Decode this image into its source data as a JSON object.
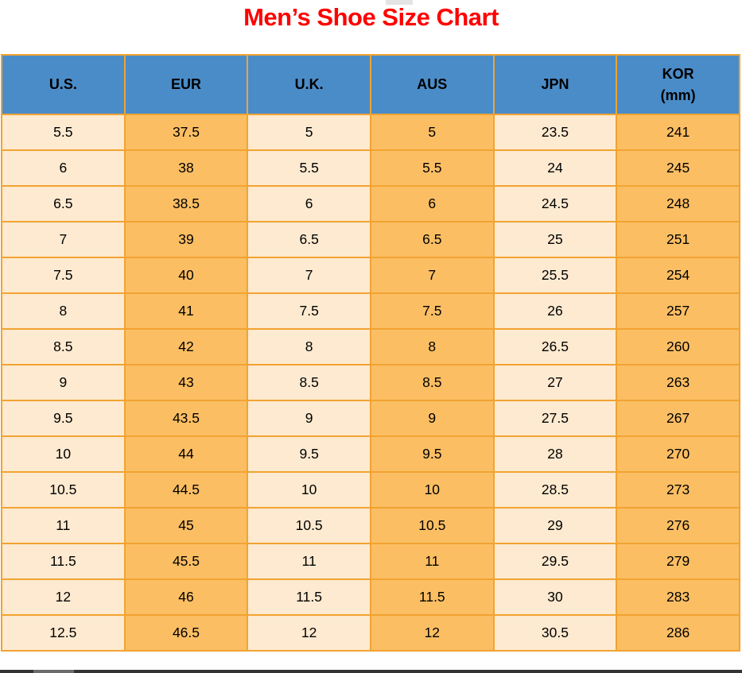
{
  "title": "Men’s Shoe Size Chart",
  "colors": {
    "title_red": "#ff0000",
    "header_blue": "#4a8cc8",
    "border_orange": "#f2a331",
    "cell_cream": "#fdead0",
    "cell_orange": "#fbbe63",
    "scrollbar_track": "#333333",
    "scrollbar_thumb": "#6b6b6b",
    "artifact_gray": "#e4e4e4"
  },
  "table": {
    "columns": [
      {
        "label": "U.S."
      },
      {
        "label": "EUR"
      },
      {
        "label": "U.K."
      },
      {
        "label": "AUS"
      },
      {
        "label": "JPN"
      },
      {
        "label": "KOR",
        "label_line2": "(mm)"
      }
    ]
  },
  "chart_data": {
    "type": "table",
    "title": "Men’s Shoe Size Chart",
    "columns": [
      "U.S.",
      "EUR",
      "U.K.",
      "AUS",
      "JPN",
      "KOR (mm)"
    ],
    "rows": [
      [
        "5.5",
        "37.5",
        "5",
        "5",
        "23.5",
        "241"
      ],
      [
        "6",
        "38",
        "5.5",
        "5.5",
        "24",
        "245"
      ],
      [
        "6.5",
        "38.5",
        "6",
        "6",
        "24.5",
        "248"
      ],
      [
        "7",
        "39",
        "6.5",
        "6.5",
        "25",
        "251"
      ],
      [
        "7.5",
        "40",
        "7",
        "7",
        "25.5",
        "254"
      ],
      [
        "8",
        "41",
        "7.5",
        "7.5",
        "26",
        "257"
      ],
      [
        "8.5",
        "42",
        "8",
        "8",
        "26.5",
        "260"
      ],
      [
        "9",
        "43",
        "8.5",
        "8.5",
        "27",
        "263"
      ],
      [
        "9.5",
        "43.5",
        "9",
        "9",
        "27.5",
        "267"
      ],
      [
        "10",
        "44",
        "9.5",
        "9.5",
        "28",
        "270"
      ],
      [
        "10.5",
        "44.5",
        "10",
        "10",
        "28.5",
        "273"
      ],
      [
        "11",
        "45",
        "10.5",
        "10.5",
        "29",
        "276"
      ],
      [
        "11.5",
        "45.5",
        "11",
        "11",
        "29.5",
        "279"
      ],
      [
        "12",
        "46",
        "11.5",
        "11.5",
        "30",
        "283"
      ],
      [
        "12.5",
        "46.5",
        "12",
        "12",
        "30.5",
        "286"
      ]
    ]
  }
}
